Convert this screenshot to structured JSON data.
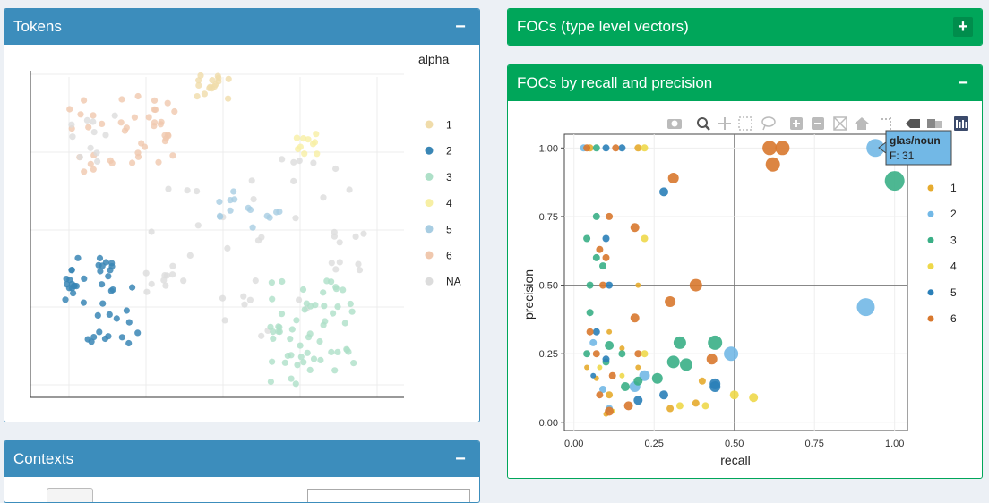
{
  "tokens_panel": {
    "title": "Tokens",
    "toggle": "−",
    "legend_title": "alpha",
    "legend": [
      {
        "label": "1",
        "color": "#f0dcaa"
      },
      {
        "label": "2",
        "color": "#3a86b5"
      },
      {
        "label": "3",
        "color": "#aee0c8"
      },
      {
        "label": "4",
        "color": "#f7efa4"
      },
      {
        "label": "5",
        "color": "#a8cde2"
      },
      {
        "label": "6",
        "color": "#f0c8ae"
      },
      {
        "label": "NA",
        "color": "#dcdcdc"
      }
    ]
  },
  "contexts_panel": {
    "title": "Contexts",
    "toggle": "−"
  },
  "focs_type_panel": {
    "title": "FOCs (type level vectors)",
    "toggle": "+"
  },
  "focs_recall_panel": {
    "title": "FOCs by recall and precision",
    "toggle": "−",
    "modebar": [
      "camera-icon",
      "zoom-icon",
      "pan-icon",
      "box-select-icon",
      "lasso-icon",
      "zoom-in-icon",
      "zoom-out-icon",
      "autoscale-icon",
      "reset-axes-icon",
      "spike-lines-icon",
      "hover-closest-icon",
      "hover-compare-icon",
      "plotly-logo-icon"
    ],
    "tooltip": {
      "title": "glas/noun",
      "line": "F: 31"
    }
  },
  "chart_data": {
    "type": "scatter",
    "xlabel": "recall",
    "ylabel": "precision",
    "xlim": [
      -0.03,
      1.04
    ],
    "ylim": [
      -0.03,
      1.05
    ],
    "xticks": [
      "0.00",
      "0.25",
      "0.50",
      "0.75",
      "1.00"
    ],
    "yticks": [
      "0.00",
      "0.25",
      "0.50",
      "0.75",
      "1.00"
    ],
    "grid": true,
    "legend_position": "right",
    "series": [
      {
        "name": "1",
        "color": "#e6ab2e",
        "points": [
          [
            0.05,
            1.0,
            4
          ],
          [
            0.2,
            1.0,
            4
          ],
          [
            0.11,
            0.33,
            3
          ],
          [
            0.2,
            0.5,
            3
          ],
          [
            0.04,
            0.2,
            3
          ],
          [
            0.07,
            0.16,
            3
          ],
          [
            0.1,
            0.03,
            3
          ],
          [
            0.2,
            0.2,
            3
          ],
          [
            0.38,
            0.07,
            4
          ],
          [
            0.3,
            0.05,
            4
          ],
          [
            0.4,
            0.15,
            4
          ],
          [
            0.15,
            0.27,
            3
          ],
          [
            0.11,
            0.1,
            4
          ]
        ]
      },
      {
        "name": "2",
        "color": "#72b8e6",
        "points": [
          [
            0.94,
            1.0,
            10
          ],
          [
            0.91,
            0.42,
            10
          ],
          [
            0.49,
            0.25,
            8
          ],
          [
            0.22,
            0.17,
            6
          ],
          [
            0.19,
            0.13,
            6
          ],
          [
            0.11,
            0.05,
            4
          ],
          [
            0.09,
            0.12,
            4
          ],
          [
            0.06,
            0.29,
            4
          ],
          [
            0.03,
            1.0,
            4
          ]
        ]
      },
      {
        "name": "3",
        "color": "#3aaf86",
        "points": [
          [
            1.0,
            0.88,
            11
          ],
          [
            0.44,
            0.29,
            8
          ],
          [
            0.33,
            0.29,
            7
          ],
          [
            0.31,
            0.22,
            7
          ],
          [
            0.35,
            0.21,
            7
          ],
          [
            0.26,
            0.16,
            6
          ],
          [
            0.05,
            0.4,
            4
          ],
          [
            0.07,
            0.75,
            4
          ],
          [
            0.07,
            0.6,
            4
          ],
          [
            0.09,
            0.57,
            4
          ],
          [
            0.04,
            0.67,
            4
          ],
          [
            0.05,
            0.5,
            4
          ],
          [
            0.11,
            0.28,
            5
          ],
          [
            0.16,
            0.13,
            5
          ],
          [
            0.2,
            0.15,
            5
          ],
          [
            0.04,
            0.25,
            4
          ],
          [
            0.07,
            1.0,
            4
          ],
          [
            0.1,
            0.22,
            4
          ],
          [
            0.15,
            0.25,
            4
          ]
        ]
      },
      {
        "name": "4",
        "color": "#eed84a",
        "points": [
          [
            0.22,
            1.0,
            4
          ],
          [
            0.22,
            0.67,
            4
          ],
          [
            0.22,
            0.25,
            4
          ],
          [
            0.33,
            0.06,
            4
          ],
          [
            0.56,
            0.09,
            5
          ],
          [
            0.5,
            0.1,
            5
          ],
          [
            0.41,
            0.06,
            4
          ],
          [
            0.15,
            0.17,
            3
          ],
          [
            0.12,
            0.04,
            3
          ],
          [
            0.08,
            0.2,
            3
          ]
        ]
      },
      {
        "name": "5",
        "color": "#2a7fb8",
        "points": [
          [
            0.28,
            0.84,
            5
          ],
          [
            0.44,
            0.13,
            6
          ],
          [
            0.44,
            0.14,
            6
          ],
          [
            0.28,
            0.1,
            5
          ],
          [
            0.2,
            0.08,
            5
          ],
          [
            0.15,
            1.0,
            4
          ],
          [
            0.1,
            1.0,
            4
          ],
          [
            0.1,
            0.67,
            4
          ],
          [
            0.11,
            0.5,
            4
          ],
          [
            0.07,
            0.33,
            4
          ],
          [
            0.1,
            0.23,
            4
          ],
          [
            0.06,
            0.17,
            3
          ]
        ]
      },
      {
        "name": "6",
        "color": "#d8782e",
        "points": [
          [
            0.61,
            1.0,
            8
          ],
          [
            0.65,
            1.0,
            8
          ],
          [
            0.62,
            0.94,
            8
          ],
          [
            0.31,
            0.89,
            6
          ],
          [
            0.38,
            0.5,
            7
          ],
          [
            0.3,
            0.44,
            6
          ],
          [
            0.43,
            0.23,
            6
          ],
          [
            0.19,
            0.71,
            5
          ],
          [
            0.11,
            0.75,
            4
          ],
          [
            0.19,
            0.38,
            5
          ],
          [
            0.1,
            0.6,
            4
          ],
          [
            0.08,
            0.63,
            4
          ],
          [
            0.05,
            0.33,
            4
          ],
          [
            0.12,
            0.17,
            4
          ],
          [
            0.07,
            0.25,
            4
          ],
          [
            0.2,
            0.25,
            4
          ],
          [
            0.08,
            0.1,
            4
          ],
          [
            0.11,
            0.04,
            5
          ],
          [
            0.17,
            0.06,
            5
          ],
          [
            0.04,
            1.0,
            4
          ],
          [
            0.13,
            1.0,
            4
          ],
          [
            0.09,
            0.5,
            4
          ]
        ]
      }
    ]
  }
}
